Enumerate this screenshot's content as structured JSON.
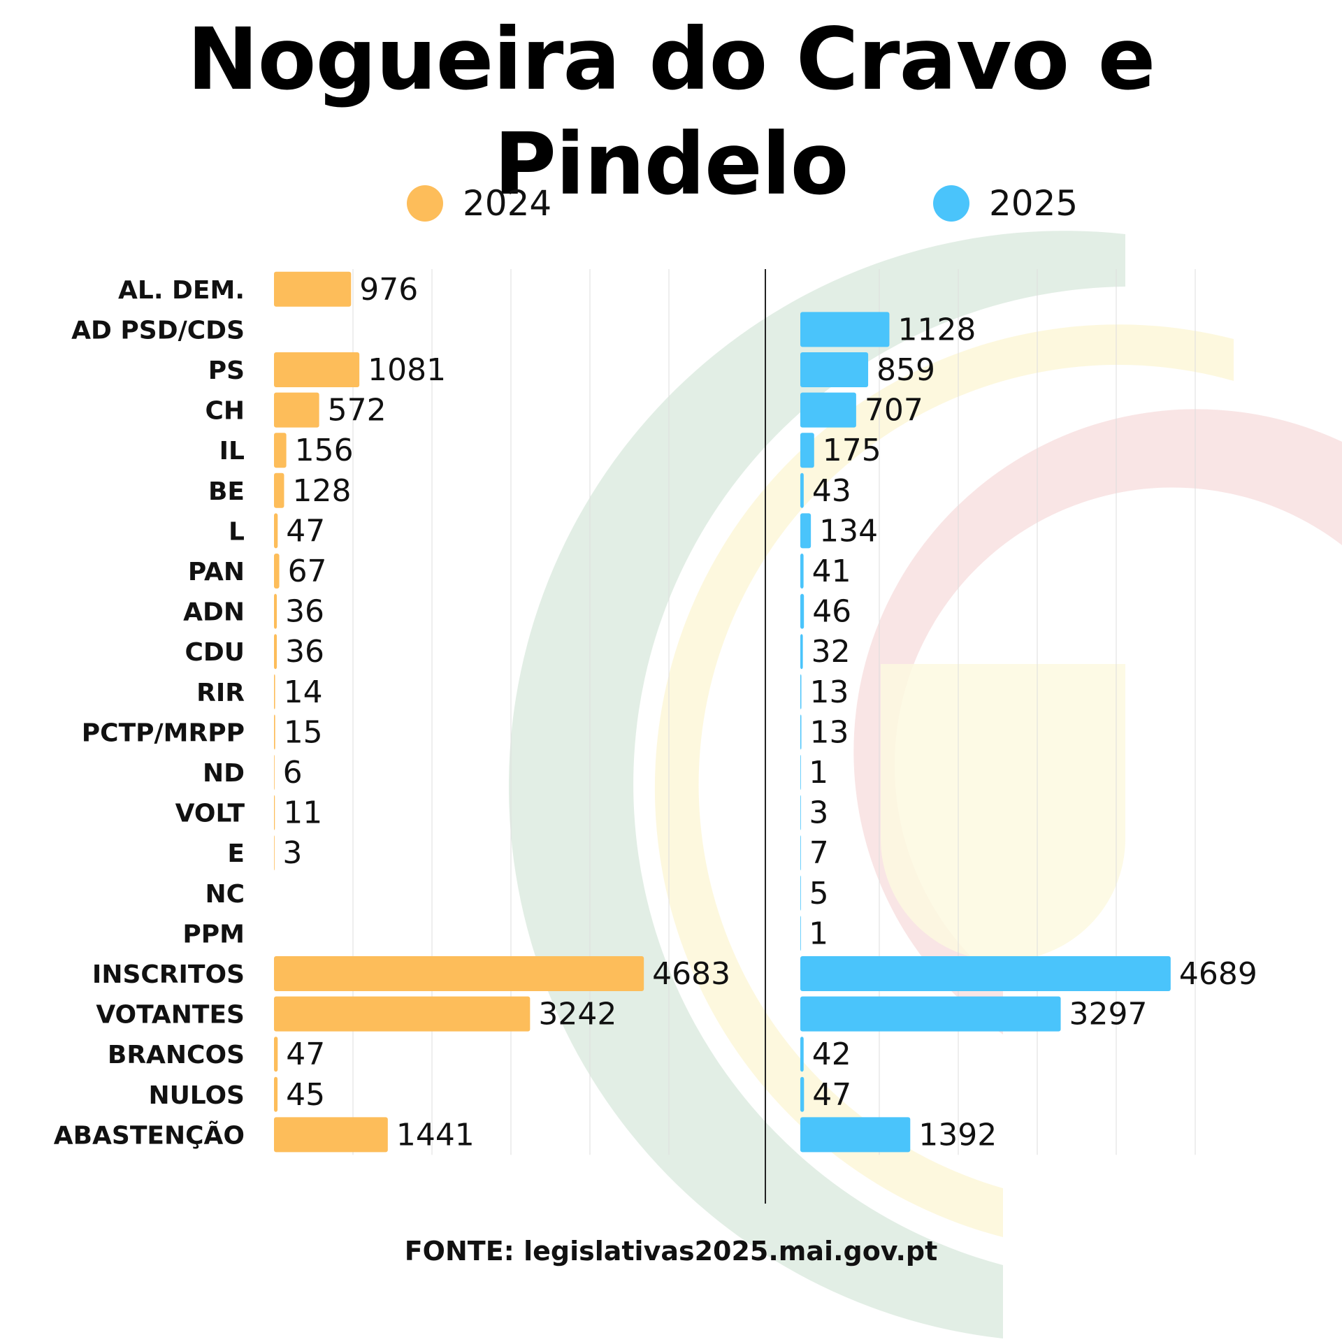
{
  "title": "Nogueira do Cravo e Pindelo",
  "source": "FONTE: legislativas2025.mai.gov.pt",
  "colors": {
    "series_2024": "#fdbd5a",
    "series_2025": "#4ac4fb",
    "gridline": "#dddddd",
    "divider": "#222222"
  },
  "legend": [
    {
      "label": "2024",
      "color": "#fdbd5a"
    },
    {
      "label": "2025",
      "color": "#4ac4fb"
    }
  ],
  "chart_data": {
    "type": "bar",
    "orientation": "horizontal",
    "categories": [
      "AL. DEM.",
      "AD PSD/CDS",
      "PS",
      "CH",
      "IL",
      "BE",
      "L",
      "PAN",
      "ADN",
      "CDU",
      "RIR",
      "PCTP/MRPP",
      "ND",
      "VOLT",
      "E",
      "NC",
      "PPM",
      "INSCRITOS",
      "VOTANTES",
      "BRANCOS",
      "NULOS",
      "ABASTENÇÃO"
    ],
    "series": [
      {
        "name": "2024",
        "values": [
          976,
          null,
          1081,
          572,
          156,
          128,
          47,
          67,
          36,
          36,
          14,
          15,
          6,
          11,
          3,
          null,
          null,
          4683,
          3242,
          47,
          45,
          1441
        ]
      },
      {
        "name": "2025",
        "values": [
          null,
          1128,
          859,
          707,
          175,
          43,
          134,
          41,
          46,
          32,
          13,
          13,
          1,
          3,
          7,
          5,
          1,
          4689,
          3297,
          42,
          47,
          1392
        ]
      }
    ],
    "xlim": [
      0,
      5000
    ],
    "grid": true,
    "legend_position": "top"
  }
}
